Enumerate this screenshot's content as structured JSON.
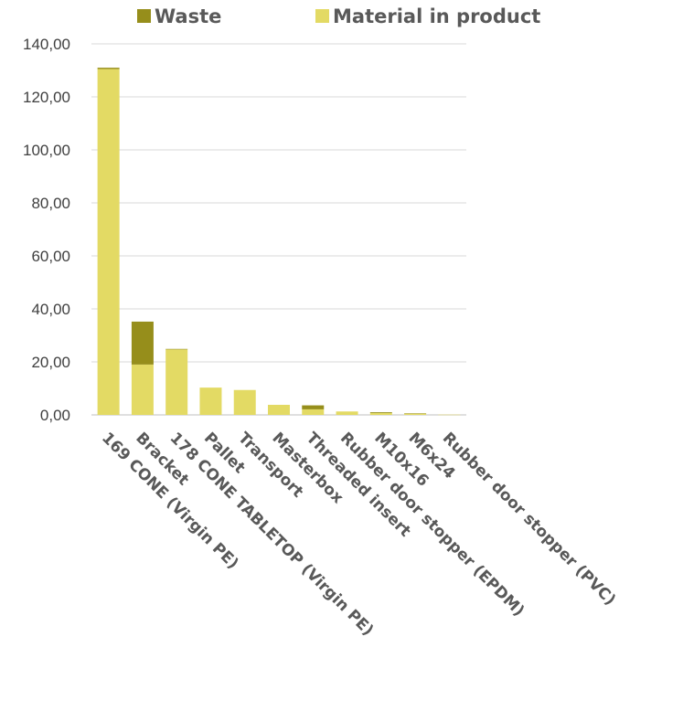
{
  "chart_data": {
    "type": "bar",
    "stacked": true,
    "categories": [
      "169 CONE (Virgin PE)",
      "Bracket",
      "178 CONE TABLETOP (Virgin PE)",
      "Pallet",
      "Transport",
      "Masterbox",
      "Threaded insert",
      "Rubber door stopper (EPDM)",
      "M10x16",
      "M6x24",
      "Rubber door stopper (PVC)"
    ],
    "series": [
      {
        "name": "Material in product",
        "color": "#e3da64",
        "values": [
          130.5,
          19.0,
          24.7,
          10.3,
          9.4,
          3.8,
          2.1,
          1.3,
          0.7,
          0.5,
          0.1
        ]
      },
      {
        "name": "Waste",
        "color": "#968e1b",
        "values": [
          0.5,
          16.2,
          0.2,
          0.0,
          0.0,
          0.0,
          1.5,
          0.0,
          0.3,
          0.1,
          0.0
        ]
      }
    ],
    "legend_order": [
      "Waste",
      "Material in product"
    ],
    "legend_position": "top",
    "ylim": [
      0,
      140
    ],
    "yticks": [
      "0,00",
      "20,00",
      "40,00",
      "60,00",
      "80,00",
      "100,00",
      "120,00",
      "140,00"
    ],
    "grid": true
  }
}
